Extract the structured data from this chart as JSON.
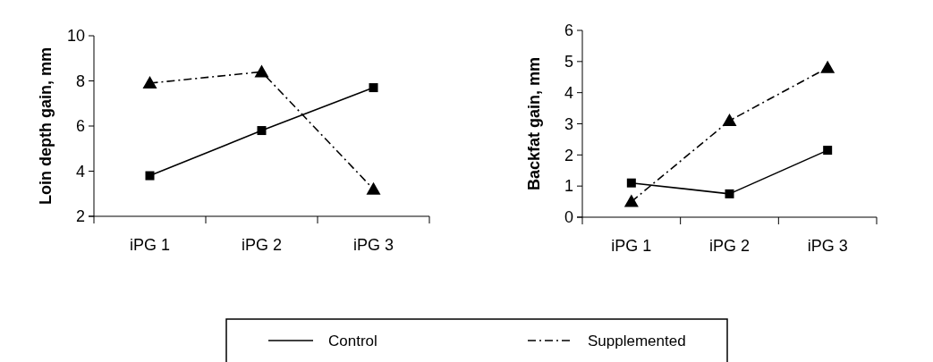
{
  "chart_data": [
    {
      "type": "line",
      "ylabel": "Loin depth gain, mm",
      "categories": [
        "iPG 1",
        "iPG 2",
        "iPG 3"
      ],
      "ylim": [
        2,
        10
      ],
      "yticks": [
        2,
        4,
        6,
        8,
        10
      ],
      "grid": false,
      "legend": "bottom",
      "series": [
        {
          "name": "Control",
          "color": "#000000",
          "values": [
            3.8,
            5.8,
            7.7
          ],
          "marker": "square",
          "line_style": "solid"
        },
        {
          "name": "Supplemented",
          "color": "#000000",
          "values": [
            7.9,
            8.4,
            3.2
          ],
          "marker": "triangle",
          "line_style": "dashed"
        }
      ]
    },
    {
      "type": "line",
      "ylabel": "Backfat gain, mm",
      "categories": [
        "iPG 1",
        "iPG 2",
        "iPG 3"
      ],
      "ylim": [
        0,
        6
      ],
      "yticks": [
        0,
        1,
        2,
        3,
        4,
        5,
        6
      ],
      "grid": false,
      "series": [
        {
          "color": "#000000",
          "values": [
            1.1,
            0.75,
            2.15
          ],
          "marker": "square",
          "line_style": "solid"
        },
        {
          "color": "#000000",
          "values": [
            0.5,
            3.1,
            4.8
          ],
          "marker": "triangle",
          "line_style": "dashed"
        }
      ]
    }
  ]
}
